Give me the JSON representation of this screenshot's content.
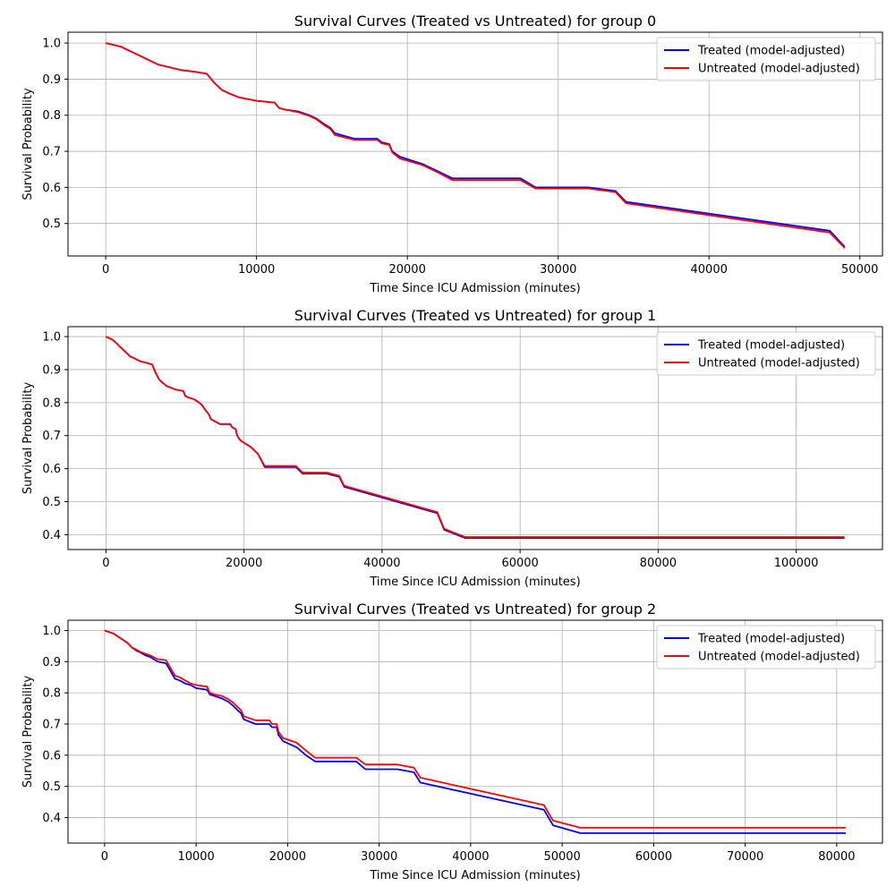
{
  "chart_data": [
    {
      "type": "line",
      "title": "Survival Curves (Treated vs Untreated) for group 0",
      "xlabel": "Time Since ICU Admission (minutes)",
      "ylabel": "Survival Probability",
      "xlim": [
        -2500,
        51500
      ],
      "ylim": [
        0.41,
        1.03
      ],
      "xticks": [
        0,
        10000,
        20000,
        30000,
        40000,
        50000
      ],
      "xtick_labels": [
        "0",
        "10000",
        "20000",
        "30000",
        "40000",
        "50000"
      ],
      "yticks": [
        0.5,
        0.6,
        0.7,
        0.8,
        0.9,
        1.0
      ],
      "ytick_labels": [
        "0.5",
        "0.6",
        "0.7",
        "0.8",
        "0.9",
        "1.0"
      ],
      "grid": true,
      "legend": "top-right",
      "series": [
        {
          "name": "Treated (model-adjusted)",
          "color": "#0000ff",
          "x": [
            0,
            500,
            1000,
            1500,
            2000,
            2500,
            3000,
            3500,
            4000,
            4500,
            5000,
            6000,
            6700,
            7200,
            7700,
            8200,
            8800,
            9400,
            10000,
            11200,
            11500,
            12000,
            12800,
            13500,
            14000,
            14500,
            14900,
            15200,
            16500,
            18000,
            18300,
            18800,
            19000,
            19500,
            21000,
            22000,
            23000,
            27500,
            28500,
            32000,
            33800,
            34500,
            48000,
            49000
          ],
          "y": [
            1.0,
            0.995,
            0.99,
            0.98,
            0.97,
            0.96,
            0.95,
            0.94,
            0.935,
            0.93,
            0.925,
            0.92,
            0.915,
            0.89,
            0.87,
            0.86,
            0.85,
            0.845,
            0.84,
            0.835,
            0.82,
            0.815,
            0.81,
            0.8,
            0.79,
            0.775,
            0.765,
            0.75,
            0.735,
            0.735,
            0.725,
            0.72,
            0.7,
            0.685,
            0.665,
            0.645,
            0.625,
            0.625,
            0.6,
            0.6,
            0.59,
            0.56,
            0.48,
            0.435
          ]
        },
        {
          "name": "Untreated (model-adjusted)",
          "color": "#ff0000",
          "x": [
            0,
            500,
            1000,
            1500,
            2000,
            2500,
            3000,
            3500,
            4000,
            4500,
            5000,
            6000,
            6700,
            7200,
            7700,
            8200,
            8800,
            9400,
            10000,
            11200,
            11500,
            12000,
            12800,
            13500,
            14000,
            14500,
            14900,
            15200,
            16500,
            18000,
            18300,
            18800,
            19000,
            19500,
            21000,
            22000,
            23000,
            27500,
            28500,
            32000,
            33800,
            34500,
            48000,
            49000
          ],
          "y": [
            1.0,
            0.995,
            0.99,
            0.98,
            0.97,
            0.96,
            0.95,
            0.94,
            0.935,
            0.93,
            0.925,
            0.92,
            0.915,
            0.89,
            0.87,
            0.86,
            0.85,
            0.845,
            0.84,
            0.835,
            0.82,
            0.815,
            0.808,
            0.798,
            0.788,
            0.772,
            0.762,
            0.745,
            0.732,
            0.732,
            0.722,
            0.718,
            0.697,
            0.68,
            0.662,
            0.642,
            0.62,
            0.62,
            0.597,
            0.597,
            0.587,
            0.556,
            0.475,
            0.432
          ]
        }
      ]
    },
    {
      "type": "line",
      "title": "Survival Curves (Treated vs Untreated) for group 1",
      "xlabel": "Time Since ICU Admission (minutes)",
      "ylabel": "Survival Probability",
      "xlim": [
        -5500,
        112500
      ],
      "ylim": [
        0.355,
        1.03
      ],
      "xticks": [
        0,
        20000,
        40000,
        60000,
        80000,
        100000
      ],
      "xtick_labels": [
        "0",
        "20000",
        "40000",
        "60000",
        "80000",
        "100000"
      ],
      "yticks": [
        0.4,
        0.5,
        0.6,
        0.7,
        0.8,
        0.9,
        1.0
      ],
      "ytick_labels": [
        "0.4",
        "0.5",
        "0.6",
        "0.7",
        "0.8",
        "0.9",
        "1.0"
      ],
      "grid": true,
      "legend": "top-right",
      "series": [
        {
          "name": "Treated (model-adjusted)",
          "color": "#0000ff",
          "x": [
            0,
            500,
            1000,
            1500,
            2000,
            2500,
            3000,
            3500,
            4000,
            4500,
            5000,
            6000,
            6700,
            7200,
            7700,
            8200,
            8800,
            9400,
            10000,
            11200,
            11500,
            12000,
            12800,
            13500,
            14000,
            14500,
            14900,
            15200,
            16500,
            18000,
            18300,
            18800,
            19000,
            19500,
            21000,
            22000,
            23000,
            27500,
            28500,
            32000,
            33800,
            34500,
            48000,
            49000,
            52000,
            107000
          ],
          "y": [
            1.0,
            0.995,
            0.99,
            0.98,
            0.97,
            0.96,
            0.95,
            0.94,
            0.935,
            0.93,
            0.925,
            0.92,
            0.915,
            0.89,
            0.87,
            0.86,
            0.85,
            0.845,
            0.84,
            0.835,
            0.82,
            0.815,
            0.81,
            0.8,
            0.79,
            0.775,
            0.765,
            0.75,
            0.735,
            0.735,
            0.725,
            0.72,
            0.7,
            0.685,
            0.665,
            0.645,
            0.605,
            0.605,
            0.585,
            0.585,
            0.575,
            0.545,
            0.465,
            0.415,
            0.39,
            0.39
          ]
        },
        {
          "name": "Untreated (model-adjusted)",
          "color": "#ff0000",
          "x": [
            0,
            500,
            1000,
            1500,
            2000,
            2500,
            3000,
            3500,
            4000,
            4500,
            5000,
            6000,
            6700,
            7200,
            7700,
            8200,
            8800,
            9400,
            10000,
            11200,
            11500,
            12000,
            12800,
            13500,
            14000,
            14500,
            14900,
            15200,
            16500,
            18000,
            18300,
            18800,
            19000,
            19500,
            21000,
            22000,
            23000,
            27500,
            28500,
            32000,
            33800,
            34500,
            48000,
            49000,
            52000,
            107000
          ],
          "y": [
            1.0,
            0.995,
            0.99,
            0.98,
            0.97,
            0.96,
            0.95,
            0.94,
            0.935,
            0.93,
            0.925,
            0.92,
            0.915,
            0.89,
            0.87,
            0.86,
            0.85,
            0.845,
            0.84,
            0.835,
            0.82,
            0.815,
            0.81,
            0.8,
            0.79,
            0.775,
            0.765,
            0.75,
            0.735,
            0.735,
            0.725,
            0.72,
            0.7,
            0.685,
            0.665,
            0.645,
            0.608,
            0.608,
            0.588,
            0.588,
            0.578,
            0.548,
            0.468,
            0.418,
            0.393,
            0.393
          ]
        }
      ]
    },
    {
      "type": "line",
      "title": "Survival Curves (Treated vs Untreated) for group 2",
      "xlabel": "Time Since ICU Admission (minutes)",
      "ylabel": "Survival Probability",
      "xlim": [
        -4000,
        85000
      ],
      "ylim": [
        0.318,
        1.033
      ],
      "xticks": [
        0,
        10000,
        20000,
        30000,
        40000,
        50000,
        60000,
        70000,
        80000
      ],
      "xtick_labels": [
        "0",
        "10000",
        "20000",
        "30000",
        "40000",
        "50000",
        "60000",
        "70000",
        "80000"
      ],
      "yticks": [
        0.4,
        0.5,
        0.6,
        0.7,
        0.8,
        0.9,
        1.0
      ],
      "ytick_labels": [
        "0.4",
        "0.5",
        "0.6",
        "0.7",
        "0.8",
        "0.9",
        "1.0"
      ],
      "grid": true,
      "legend": "top-right",
      "series": [
        {
          "name": "Treated (model-adjusted)",
          "color": "#0000ff",
          "x": [
            0,
            500,
            1000,
            1500,
            2000,
            2500,
            3000,
            3500,
            4000,
            4500,
            5000,
            5800,
            6700,
            7200,
            7700,
            8200,
            8800,
            9400,
            10000,
            11200,
            11500,
            12000,
            12800,
            13500,
            14000,
            14500,
            14900,
            15200,
            16500,
            18000,
            18300,
            18800,
            19000,
            19500,
            21000,
            22000,
            23000,
            27500,
            28500,
            32000,
            33800,
            34500,
            48000,
            49000,
            52000,
            81000
          ],
          "y": [
            1.0,
            0.995,
            0.99,
            0.98,
            0.97,
            0.96,
            0.945,
            0.935,
            0.928,
            0.92,
            0.915,
            0.9,
            0.895,
            0.87,
            0.845,
            0.84,
            0.83,
            0.825,
            0.815,
            0.81,
            0.795,
            0.79,
            0.782,
            0.772,
            0.76,
            0.745,
            0.735,
            0.715,
            0.7,
            0.7,
            0.69,
            0.69,
            0.665,
            0.645,
            0.625,
            0.6,
            0.58,
            0.58,
            0.555,
            0.555,
            0.545,
            0.512,
            0.425,
            0.375,
            0.35,
            0.35
          ]
        },
        {
          "name": "Untreated (model-adjusted)",
          "color": "#ff0000",
          "x": [
            0,
            500,
            1000,
            1500,
            2000,
            2500,
            3000,
            3500,
            4000,
            4500,
            5000,
            5800,
            6700,
            7200,
            7700,
            8200,
            8800,
            9400,
            10000,
            11200,
            11500,
            12000,
            12800,
            13500,
            14000,
            14500,
            14900,
            15200,
            16500,
            18000,
            18300,
            18800,
            19000,
            19500,
            21000,
            22000,
            23000,
            27500,
            28500,
            32000,
            33800,
            34500,
            48000,
            49000,
            52000,
            81000
          ],
          "y": [
            1.0,
            0.995,
            0.99,
            0.98,
            0.97,
            0.96,
            0.945,
            0.938,
            0.93,
            0.925,
            0.92,
            0.908,
            0.905,
            0.88,
            0.855,
            0.85,
            0.84,
            0.83,
            0.825,
            0.82,
            0.8,
            0.795,
            0.79,
            0.78,
            0.77,
            0.755,
            0.745,
            0.725,
            0.712,
            0.712,
            0.7,
            0.7,
            0.675,
            0.655,
            0.64,
            0.615,
            0.592,
            0.592,
            0.57,
            0.57,
            0.56,
            0.528,
            0.44,
            0.39,
            0.367,
            0.367
          ]
        }
      ]
    }
  ]
}
